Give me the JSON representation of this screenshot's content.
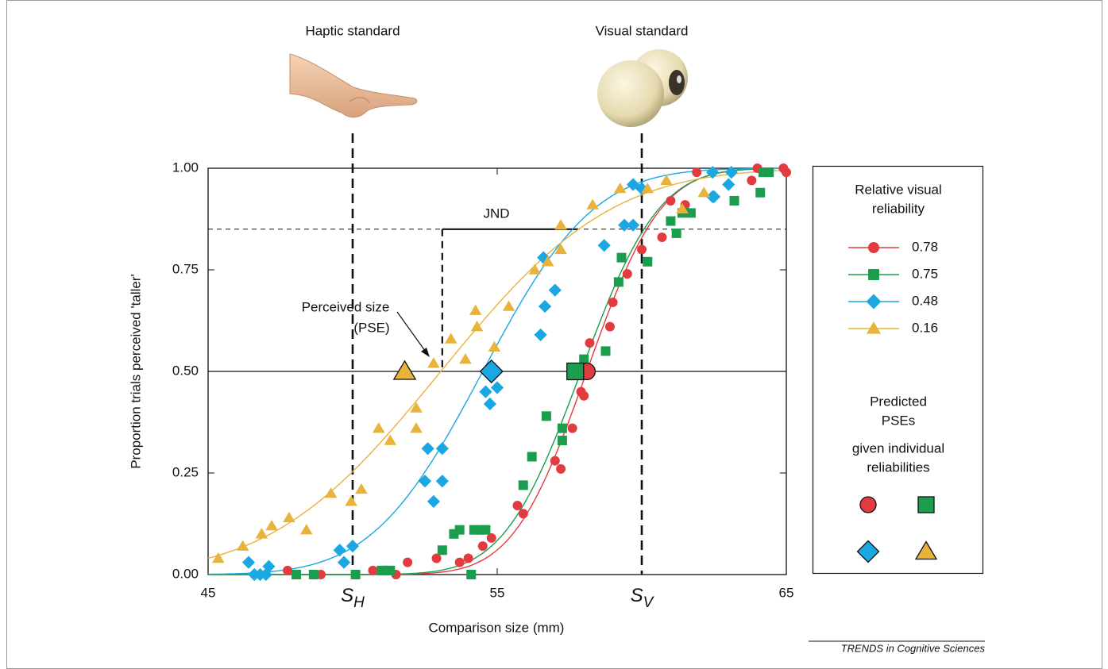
{
  "chart_data": {
    "type": "scatter",
    "xlabel": "Comparison size (mm)",
    "ylabel": "Proportion trials perceived 'taller'",
    "xlim": [
      45,
      65
    ],
    "ylim": [
      0,
      1
    ],
    "xticks": [
      45,
      55,
      65
    ],
    "yticks": [
      {
        "value": 0,
        "label": "0.00"
      },
      {
        "value": 0.25,
        "label": "0.25"
      },
      {
        "value": 0.5,
        "label": "0.50"
      },
      {
        "value": 0.75,
        "label": "0.75"
      },
      {
        "value": 1,
        "label": "1.00"
      }
    ],
    "standards": [
      {
        "label": "Haptic standard",
        "x": 50,
        "symbol": "S",
        "subscript": "H"
      },
      {
        "label": "Visual standard",
        "x": 60,
        "symbol": "S",
        "subscript": "V"
      }
    ],
    "pse_level": 0.5,
    "jnd": {
      "label": "JND",
      "level": 0.85,
      "from": 53.1,
      "to": 57.8
    },
    "pse_annotation": [
      "Perceived size",
      "(PSE)"
    ],
    "legend_title": [
      "Relative visual",
      "reliability"
    ],
    "predicted_title": [
      "Predicted",
      "PSEs",
      "given individual",
      "reliabilities"
    ],
    "source": "TRENDS in Cognitive Sciences",
    "series": [
      {
        "name": "0.78",
        "color": "#e23b3f",
        "marker": "circle",
        "fit_mean": 58.1,
        "fit_sd": 2.0,
        "predicted_pse": 58.1,
        "x": [
          47.75,
          48.9,
          50.7,
          51.1,
          51.5,
          51.9,
          52.9,
          53.7,
          54.0,
          54.5,
          54.8,
          55.7,
          55.9,
          57.0,
          57.2,
          57.6,
          57.9,
          58.0,
          58.2,
          58.9,
          59.0,
          59.5,
          60.0,
          60.7,
          61.0,
          61.5,
          61.9,
          63.8,
          64.0,
          64.9,
          65.0
        ],
        "y": [
          0.01,
          0,
          0.01,
          0.01,
          0,
          0.03,
          0.04,
          0.03,
          0.04,
          0.07,
          0.09,
          0.17,
          0.15,
          0.28,
          0.26,
          0.36,
          0.45,
          0.44,
          0.57,
          0.61,
          0.67,
          0.74,
          0.8,
          0.83,
          0.92,
          0.91,
          0.99,
          0.97,
          1.0,
          1.0,
          0.99
        ]
      },
      {
        "name": "0.75",
        "color": "#1a9e4e",
        "marker": "square",
        "fit_mean": 57.9,
        "fit_sd": 2.1,
        "predicted_pse": 57.7,
        "x": [
          48.05,
          48.65,
          50.1,
          51.0,
          51.2,
          51.3,
          53.1,
          53.5,
          53.7,
          54.1,
          54.2,
          54.4,
          54.6,
          55.9,
          56.2,
          56.7,
          57.25,
          57.25,
          57.6,
          58.0,
          58.75,
          59.2,
          59.3,
          60.2,
          61.0,
          61.2,
          61.4,
          61.7,
          63.2,
          64.1,
          64.2,
          64.4
        ],
        "y": [
          0,
          0,
          0,
          0.01,
          0.01,
          0.01,
          0.06,
          0.1,
          0.11,
          0,
          0.11,
          0.11,
          0.11,
          0.22,
          0.29,
          0.39,
          0.36,
          0.33,
          0.5,
          0.53,
          0.55,
          0.72,
          0.78,
          0.77,
          0.87,
          0.84,
          0.89,
          0.89,
          0.92,
          0.94,
          0.99,
          0.99
        ]
      },
      {
        "name": "0.48",
        "color": "#1ba7e2",
        "marker": "diamond",
        "fit_mean": 54.5,
        "fit_sd": 3.0,
        "predicted_pse": 54.8,
        "x": [
          46.4,
          46.6,
          46.8,
          47.0,
          47.1,
          49.55,
          49.7,
          50.0,
          52.5,
          52.8,
          52.6,
          53.1,
          53.1,
          54.7,
          54.6,
          54.75,
          55.0,
          56.5,
          56.65,
          57.0,
          56.6,
          58.7,
          59.4,
          59.7,
          59.7,
          60.0,
          62.45,
          62.5,
          62.45,
          63.0,
          63.1
        ],
        "y": [
          0.03,
          0,
          0,
          0,
          0.02,
          0.06,
          0.03,
          0.07,
          0.23,
          0.18,
          0.31,
          0.31,
          0.23,
          0.5,
          0.45,
          0.42,
          0.46,
          0.59,
          0.66,
          0.7,
          0.78,
          0.81,
          0.86,
          0.86,
          0.96,
          0.95,
          0.93,
          0.93,
          0.99,
          0.96,
          0.99
        ]
      },
      {
        "name": "0.16",
        "color": "#e8b33a",
        "marker": "triangle",
        "fit_mean": 53.05,
        "fit_sd": 4.6,
        "predicted_pse": 51.8,
        "x": [
          45.35,
          46.2,
          46.85,
          47.2,
          47.8,
          48.4,
          49.25,
          49.95,
          50.3,
          50.9,
          51.3,
          52.2,
          52.2,
          52.8,
          53.4,
          53.9,
          54.25,
          54.3,
          54.9,
          55.4,
          56.3,
          56.75,
          57.2,
          57.2,
          58.3,
          59.25,
          60.2,
          60.85,
          61.4,
          62.15
        ],
        "y": [
          0.04,
          0.07,
          0.1,
          0.12,
          0.14,
          0.11,
          0.2,
          0.18,
          0.21,
          0.36,
          0.33,
          0.41,
          0.36,
          0.52,
          0.58,
          0.53,
          0.65,
          0.61,
          0.56,
          0.66,
          0.75,
          0.77,
          0.8,
          0.86,
          0.91,
          0.95,
          0.95,
          0.97,
          0.9,
          0.94
        ]
      }
    ]
  }
}
